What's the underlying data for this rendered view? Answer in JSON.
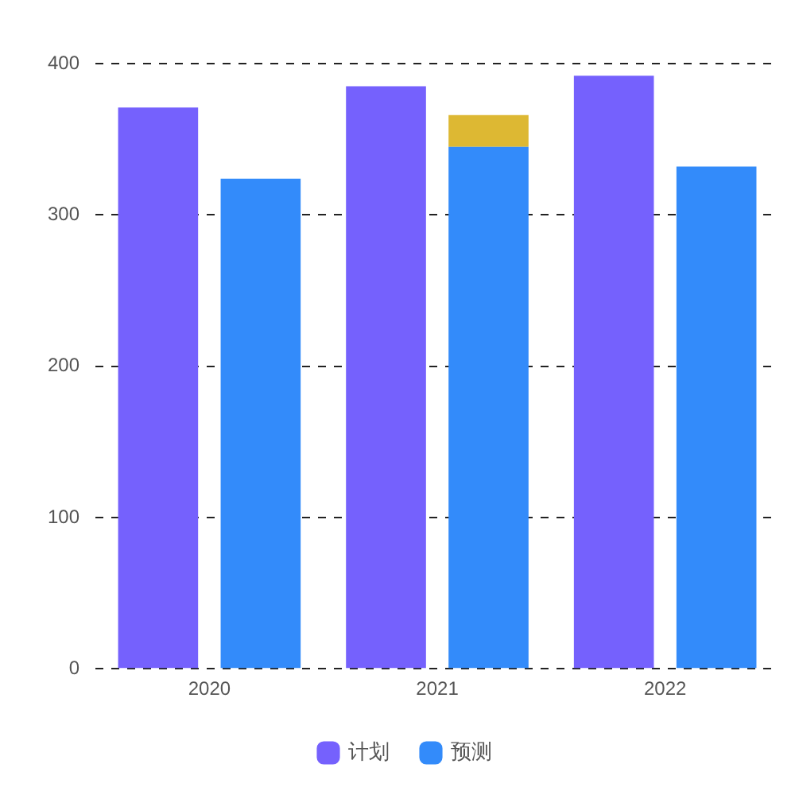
{
  "chart_data": {
    "type": "bar",
    "categories": [
      "2020",
      "2021",
      "2022"
    ],
    "series": [
      {
        "name": "计划",
        "color": "#7561fd",
        "values": [
          371,
          385,
          392
        ]
      },
      {
        "name": "预测",
        "color": "#338bfa",
        "values": [
          324,
          345,
          332
        ]
      },
      {
        "color": "#ddb833",
        "values": [
          null,
          21,
          null
        ],
        "base": [
          null,
          345,
          null
        ]
      }
    ],
    "ylim": [
      0,
      400
    ],
    "yticks": [
      0,
      100,
      200,
      300,
      400
    ],
    "grid": "y",
    "legend": "bottom"
  }
}
